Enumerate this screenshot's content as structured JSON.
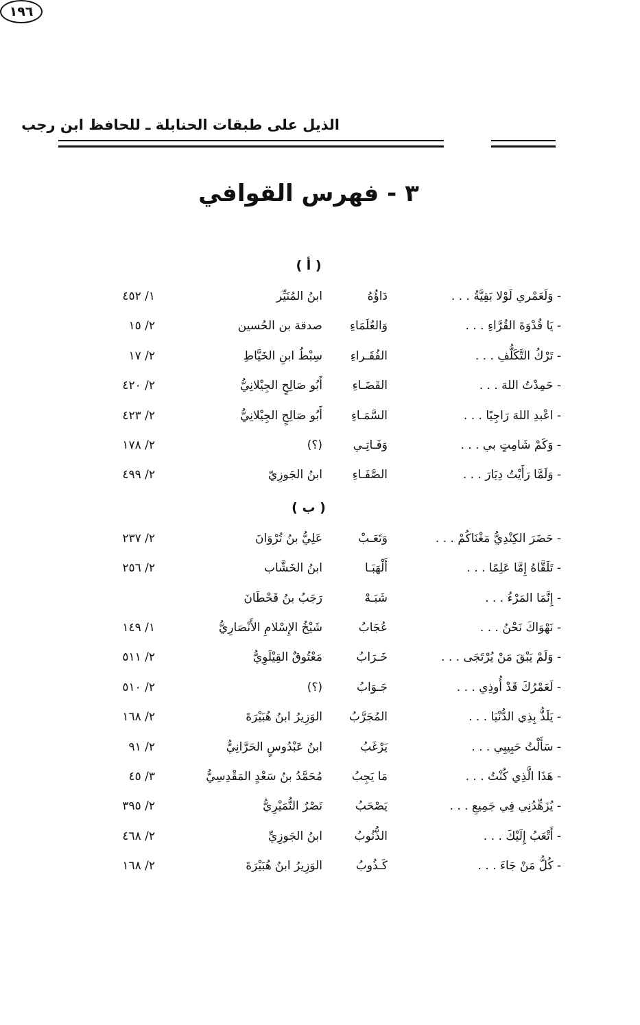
{
  "header": {
    "title": "الذيل على طبقات الحنابلة ـ للحافظ ابن رجب",
    "page_number": "١٩٦"
  },
  "section_title": "٣ - فهرس القوافي",
  "groups": [
    {
      "letter": "( أ )",
      "rows": [
        {
          "verse": "- وَلَعَمْري لَوْلا بَقِيَّةُ . . .",
          "rhyme": "دَاؤُهُ",
          "poet": "ابنُ المُنَيِّر",
          "ref": "١/ ٤٥٢"
        },
        {
          "verse": "- يَا قُدْوَةَ القُرَّاءِ . . .",
          "rhyme": "وَالعُلَمَاءِ",
          "poet": "صدقة بن الحُسين",
          "ref": "٢/ ١٥"
        },
        {
          "verse": "- تَرْكُ التَّكَلُّفِ . . .",
          "rhyme": "الفُقَـراءِ",
          "poet": "سِبْطُ ابنِ الخَيَّاطِ",
          "ref": "٢/ ١٧"
        },
        {
          "verse": "- حَمِدْتُ اللهَ . . .",
          "rhyme": "القَضَـاءِ",
          "poet": "أَبُو صَالِحٍ الجِيْلانِيُّ",
          "ref": "٢/ ٤٢٠"
        },
        {
          "verse": "- اعْبدِ اللهَ رَاجِيًا . . .",
          "rhyme": "السَّمَـاءِ",
          "poet": "أَبُو صَالِحٍ الجِيْلانِيُّ",
          "ref": "٢/ ٤٢٣"
        },
        {
          "verse": "- وَكَمْ شَامِتٍ بي . . .",
          "rhyme": "وَفَـاتِـي",
          "poet": "(؟)",
          "ref": "٢/ ١٧٨"
        },
        {
          "verse": "- وَلَمَّا رَأَيْتُ دِيَارَ . . .",
          "rhyme": "الصَّفَـاءِ",
          "poet": "ابنُ الجَوزِيّ",
          "ref": "٢/ ٤٩٩"
        }
      ]
    },
    {
      "letter": "( ب )",
      "rows": [
        {
          "verse": "- حَضَرَ الكِنْدِيُّ مَغْنَاكُمْ . . .",
          "rhyme": "وَتَعَـبْ",
          "poet": "عَلِيُّ بنُ تُرْوَانَ",
          "ref": "٢/ ٢٣٧"
        },
        {
          "verse": "- تَلَقَّاهُ إِمَّا عَلِمًا . . .",
          "rhyme": "أَلْهَبَـا",
          "poet": "ابنُ الخَشَّاب",
          "ref": "٢/ ٢٥٦"
        },
        {
          "verse": "- إِنَّمَا المَرْءُ . . .",
          "rhyme": "شَبَـهْ",
          "poet": "رَجَبُ بنُ قَحْطَانَ"
        },
        {
          "verse": "- نَهْوَاكَ نَحْنُ . . .",
          "rhyme": "عُجَابُ",
          "poet": "شَيْخُ الإِسْلامِ الأَنْصَارِيُّ",
          "ref": "١/ ١٤٩"
        },
        {
          "verse": "- وَلَمْ يَبْقَ مَنْ يُرْتَجَى . . .",
          "rhyme": "خَـرَابُ",
          "poet": "مَعْتُوقٌ القِيْلَوِيُّ",
          "ref": "٢/ ٥١١"
        },
        {
          "verse": "- لَعَمْرُكَ قَدْ أُوذِي . . .",
          "rhyme": "جَـوَابُ",
          "poet": "(؟)",
          "ref": "٢/ ٥١٠"
        },
        {
          "verse": "- يَلَذُّ بِذِي الدُّنْيَا . . .",
          "rhyme": "المُجَرَّبُ",
          "poet": "الوَزِيرُ ابنُ هُبَيْرَةَ",
          "ref": "٢/ ١٦٨"
        },
        {
          "verse": "- سَأَلْتُ حَبِيبِي . . .",
          "rhyme": "يَرْغَبُ",
          "poet": "ابنُ عَبْدُوسٍ الحَرَّانِيُّ",
          "ref": "٢/ ٩١"
        },
        {
          "verse": "- هَذَا الَّذِي كُنْتُ . . .",
          "rhyme": "مَا يَجِبُ",
          "poet": "مُحَمَّدُ بنُ سَعْدٍ المَقْدِسِيُّ",
          "ref": "٣/ ٤٥"
        },
        {
          "verse": "- يُزَهِّدُنِي فِي جَمِيعِ . . .",
          "rhyme": "يَصْحَبُ",
          "poet": "نَصْرٌ النُّمَيْرِيُّ",
          "ref": "٢/ ٣٩٥"
        },
        {
          "verse": "- أَتْعَبُ إِلَيْكَ . . .",
          "rhyme": "الذُّنُوبُ",
          "poet": "ابنُ الجَوزِيِّ",
          "ref": "٢/ ٤٦٨"
        },
        {
          "verse": "- كُلُّ مَنْ جَاءَ . . .",
          "rhyme": "كَـذُوبُ",
          "poet": "الوَزِيرُ ابنُ هُبَيْرَةَ",
          "ref": "٢/ ١٦٨"
        }
      ]
    }
  ]
}
